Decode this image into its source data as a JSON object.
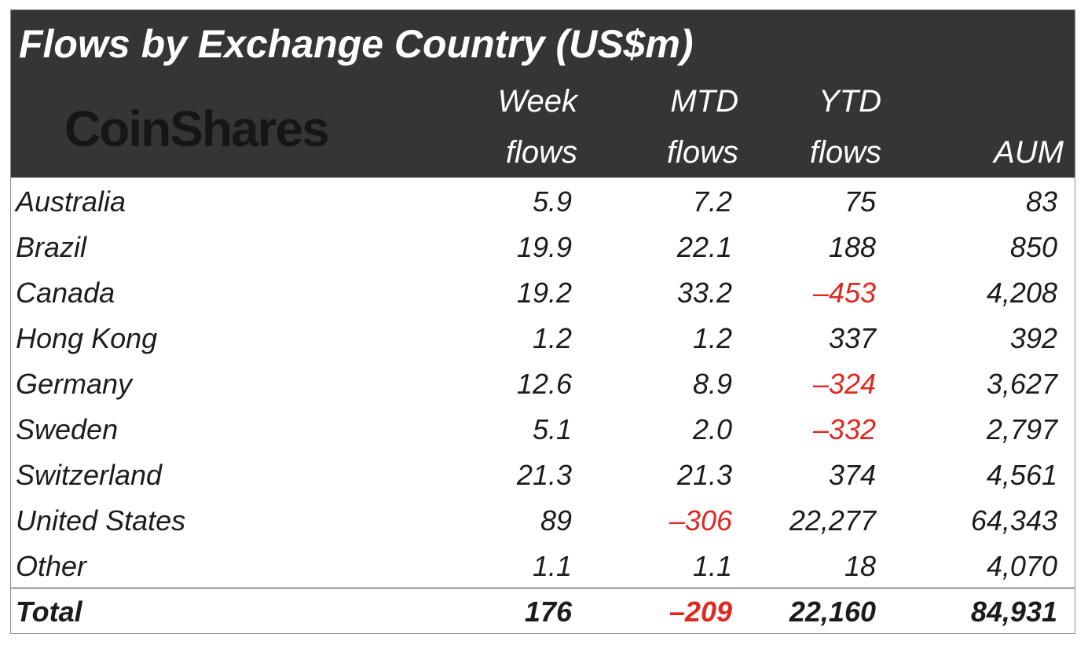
{
  "title": "Flows by Exchange Country (US$m)",
  "logo_text": "CoinShares",
  "columns": [
    {
      "line1": "Week",
      "line2": "flows"
    },
    {
      "line1": "MTD",
      "line2": "flows"
    },
    {
      "line1": "YTD",
      "line2": "flows"
    },
    {
      "line1": "",
      "line2": "AUM"
    }
  ],
  "rows": [
    {
      "country": "Australia",
      "week": "5.9",
      "mtd": "7.2",
      "ytd": "75",
      "aum": "83"
    },
    {
      "country": "Brazil",
      "week": "19.9",
      "mtd": "22.1",
      "ytd": "188",
      "aum": "850"
    },
    {
      "country": "Canada",
      "week": "19.2",
      "mtd": "33.2",
      "ytd": "-453",
      "aum": "4,208"
    },
    {
      "country": "Hong Kong",
      "week": "1.2",
      "mtd": "1.2",
      "ytd": "337",
      "aum": "392"
    },
    {
      "country": "Germany",
      "week": "12.6",
      "mtd": "8.9",
      "ytd": "-324",
      "aum": "3,627"
    },
    {
      "country": "Sweden",
      "week": "5.1",
      "mtd": "2.0",
      "ytd": "-332",
      "aum": "2,797"
    },
    {
      "country": "Switzerland",
      "week": "21.3",
      "mtd": "21.3",
      "ytd": "374",
      "aum": "4,561"
    },
    {
      "country": "United States",
      "week": "89",
      "mtd": "-306",
      "ytd": "22,277",
      "aum": "64,343"
    },
    {
      "country": "Other",
      "week": "1.1",
      "mtd": "1.1",
      "ytd": "18",
      "aum": "4,070"
    }
  ],
  "total": {
    "country": "Total",
    "week": "176",
    "mtd": "-209",
    "ytd": "22,160",
    "aum": "84,931"
  },
  "colors": {
    "header_bg": "#353535",
    "negative": "#e0281f",
    "text": "#1c1c1c"
  }
}
